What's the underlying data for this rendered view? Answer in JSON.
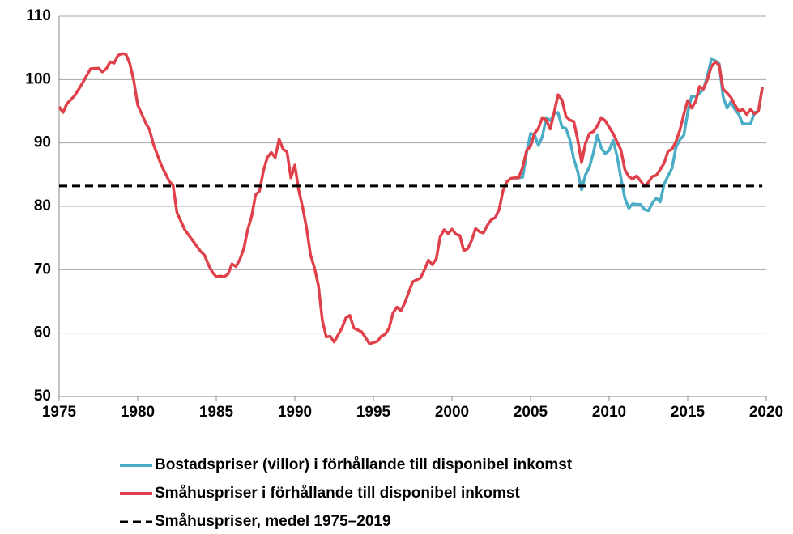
{
  "chart_data": {
    "type": "line",
    "xlim": [
      1975,
      2020
    ],
    "xticks": [
      1975,
      1980,
      1985,
      1990,
      1995,
      2000,
      2005,
      2010,
      2015,
      2020
    ],
    "ylim": [
      50,
      110
    ],
    "yticks": [
      50,
      60,
      70,
      80,
      90,
      100,
      110
    ],
    "grid": true,
    "legend": "bottom",
    "series": [
      {
        "name": "Bostadspriser (villor) i förhållande till disponibel inkomst",
        "color": "#4bacc6",
        "dashed": false,
        "x": [
          2004.0,
          2004.5,
          2004.75,
          2005.0,
          2005.25,
          2005.5,
          2005.75,
          2006.0,
          2006.25,
          2006.5,
          2006.75,
          2007.0,
          2007.25,
          2007.5,
          2007.75,
          2008.0,
          2008.25,
          2008.5,
          2008.75,
          2009.0,
          2009.25,
          2009.5,
          2009.75,
          2010.0,
          2010.25,
          2010.5,
          2010.75,
          2011.0,
          2011.25,
          2011.5,
          2011.75,
          2012.0,
          2012.25,
          2012.5,
          2012.75,
          2013.0,
          2013.25,
          2013.5,
          2013.75,
          2014.0,
          2014.25,
          2014.5,
          2014.75,
          2015.0,
          2015.25,
          2015.5,
          2015.75,
          2016.0,
          2016.25,
          2016.5,
          2016.75,
          2017.0,
          2017.25,
          2017.5,
          2017.75,
          2018.0,
          2018.25,
          2018.5,
          2018.75,
          2019.0,
          2019.25,
          2019.5,
          2019.75
        ],
        "values": [
          84.4,
          84.6,
          88.5,
          91.5,
          91.3,
          89.6,
          91.0,
          94.0,
          93.5,
          94.6,
          94.8,
          92.5,
          92.3,
          90.5,
          87.5,
          85.5,
          82.6,
          85.0,
          86.2,
          88.5,
          91.3,
          89.2,
          88.3,
          88.8,
          90.4,
          88.0,
          84.5,
          81.3,
          79.7,
          80.4,
          80.3,
          80.3,
          79.5,
          79.3,
          80.5,
          81.3,
          80.7,
          83.5,
          84.8,
          86.0,
          89.3,
          90.5,
          91.2,
          94.8,
          97.4,
          97.3,
          97.8,
          98.5,
          100.5,
          103.2,
          103.0,
          102.5,
          97.3,
          95.5,
          96.5,
          95.3,
          94.5,
          93.0,
          93.0,
          93.0,
          94.8,
          95.0,
          98.7
        ]
      },
      {
        "name": "Småhuspriser i förhållande till disponibel inkomst",
        "color": "#e0404a",
        "dashed": false,
        "x": [
          1975.0,
          1975.25,
          1975.5,
          1976.0,
          1976.5,
          1977.0,
          1977.5,
          1977.75,
          1978.0,
          1978.25,
          1978.5,
          1978.75,
          1979.0,
          1979.25,
          1979.5,
          1979.75,
          1980.0,
          1980.5,
          1980.75,
          1981.0,
          1981.5,
          1982.0,
          1982.25,
          1982.5,
          1983.0,
          1983.5,
          1984.0,
          1984.25,
          1984.5,
          1984.75,
          1985.0,
          1985.25,
          1985.5,
          1985.75,
          1986.0,
          1986.25,
          1986.5,
          1986.75,
          1987.0,
          1987.25,
          1987.5,
          1987.75,
          1988.0,
          1988.25,
          1988.5,
          1988.75,
          1989.0,
          1989.25,
          1989.5,
          1989.75,
          1990.0,
          1990.25,
          1990.5,
          1990.75,
          1991.0,
          1991.25,
          1991.5,
          1991.75,
          1992.0,
          1992.25,
          1992.5,
          1992.75,
          1993.0,
          1993.25,
          1993.5,
          1993.75,
          1994.0,
          1994.25,
          1994.5,
          1994.75,
          1995.0,
          1995.25,
          1995.5,
          1995.75,
          1996.0,
          1996.25,
          1996.5,
          1996.75,
          1997.0,
          1997.5,
          1998.0,
          1998.25,
          1998.5,
          1998.75,
          1999.0,
          1999.25,
          1999.5,
          1999.75,
          2000.0,
          2000.25,
          2000.5,
          2000.75,
          2001.0,
          2001.25,
          2001.5,
          2001.75,
          2002.0,
          2002.25,
          2002.5,
          2002.75,
          2003.0,
          2003.25,
          2003.5,
          2003.75,
          2004.0,
          2004.25,
          2004.5,
          2004.75,
          2005.0,
          2005.25,
          2005.5,
          2005.75,
          2006.0,
          2006.25,
          2006.5,
          2006.75,
          2007.0,
          2007.25,
          2007.5,
          2007.75,
          2008.0,
          2008.25,
          2008.5,
          2008.75,
          2009.0,
          2009.25,
          2009.5,
          2009.75,
          2010.0,
          2010.25,
          2010.5,
          2010.75,
          2011.0,
          2011.25,
          2011.5,
          2011.75,
          2012.0,
          2012.25,
          2012.5,
          2012.75,
          2013.0,
          2013.25,
          2013.5,
          2013.75,
          2014.0,
          2014.25,
          2014.5,
          2014.75,
          2015.0,
          2015.25,
          2015.5,
          2015.75,
          2016.0,
          2016.25,
          2016.5,
          2016.75,
          2017.0,
          2017.25,
          2017.5,
          2017.75,
          2018.0,
          2018.25,
          2018.5,
          2018.75,
          2019.0,
          2019.25,
          2019.5,
          2019.75
        ],
        "values": [
          95.7,
          94.8,
          96.2,
          97.5,
          99.5,
          101.7,
          101.8,
          101.2,
          101.7,
          102.8,
          102.6,
          103.8,
          104.1,
          104.0,
          102.5,
          99.8,
          96.0,
          93.2,
          92.1,
          89.8,
          86.5,
          84.0,
          83.3,
          79.0,
          76.3,
          74.6,
          72.9,
          72.3,
          70.8,
          69.6,
          68.9,
          69.0,
          68.9,
          69.3,
          70.9,
          70.5,
          71.6,
          73.3,
          76.3,
          78.4,
          81.8,
          82.4,
          85.6,
          87.7,
          88.5,
          87.7,
          90.6,
          89.0,
          88.6,
          84.5,
          86.5,
          82.5,
          79.8,
          76.5,
          72.3,
          70.3,
          67.5,
          62.0,
          59.4,
          59.5,
          58.6,
          59.7,
          60.8,
          62.4,
          62.8,
          60.8,
          60.5,
          60.2,
          59.3,
          58.3,
          58.5,
          58.7,
          59.5,
          59.8,
          60.8,
          63.2,
          64.1,
          63.5,
          64.8,
          68.1,
          68.7,
          70.0,
          71.5,
          70.8,
          71.7,
          75.2,
          76.3,
          75.7,
          76.4,
          75.6,
          75.4,
          73.0,
          73.3,
          74.6,
          76.5,
          76.0,
          75.8,
          77.0,
          77.9,
          78.2,
          79.5,
          82.5,
          83.9,
          84.4,
          84.5,
          84.5,
          86.2,
          88.8,
          89.5,
          91.5,
          92.3,
          94.0,
          93.6,
          92.2,
          94.8,
          97.6,
          96.8,
          94.2,
          93.6,
          93.4,
          90.5,
          86.9,
          90.0,
          91.5,
          91.8,
          92.7,
          94.0,
          93.5,
          92.5,
          91.5,
          90.2,
          88.9,
          85.8,
          84.7,
          84.3,
          84.8,
          84.0,
          83.2,
          83.8,
          84.7,
          84.9,
          85.8,
          86.8,
          88.7,
          89.0,
          90.2,
          92.0,
          94.5,
          96.7,
          95.5,
          96.5,
          98.9,
          98.5,
          100.0,
          102.0,
          102.8,
          102.3,
          98.5,
          97.9,
          97.2,
          96.0,
          95.0,
          95.3,
          94.5,
          95.3,
          94.6,
          95.0,
          98.8
        ]
      },
      {
        "name": "Småhuspriser, medel 1975–2019",
        "color": "#000000",
        "dashed": true,
        "x": [
          1975,
          2019.75
        ],
        "values": [
          83.2,
          83.2
        ]
      }
    ]
  }
}
